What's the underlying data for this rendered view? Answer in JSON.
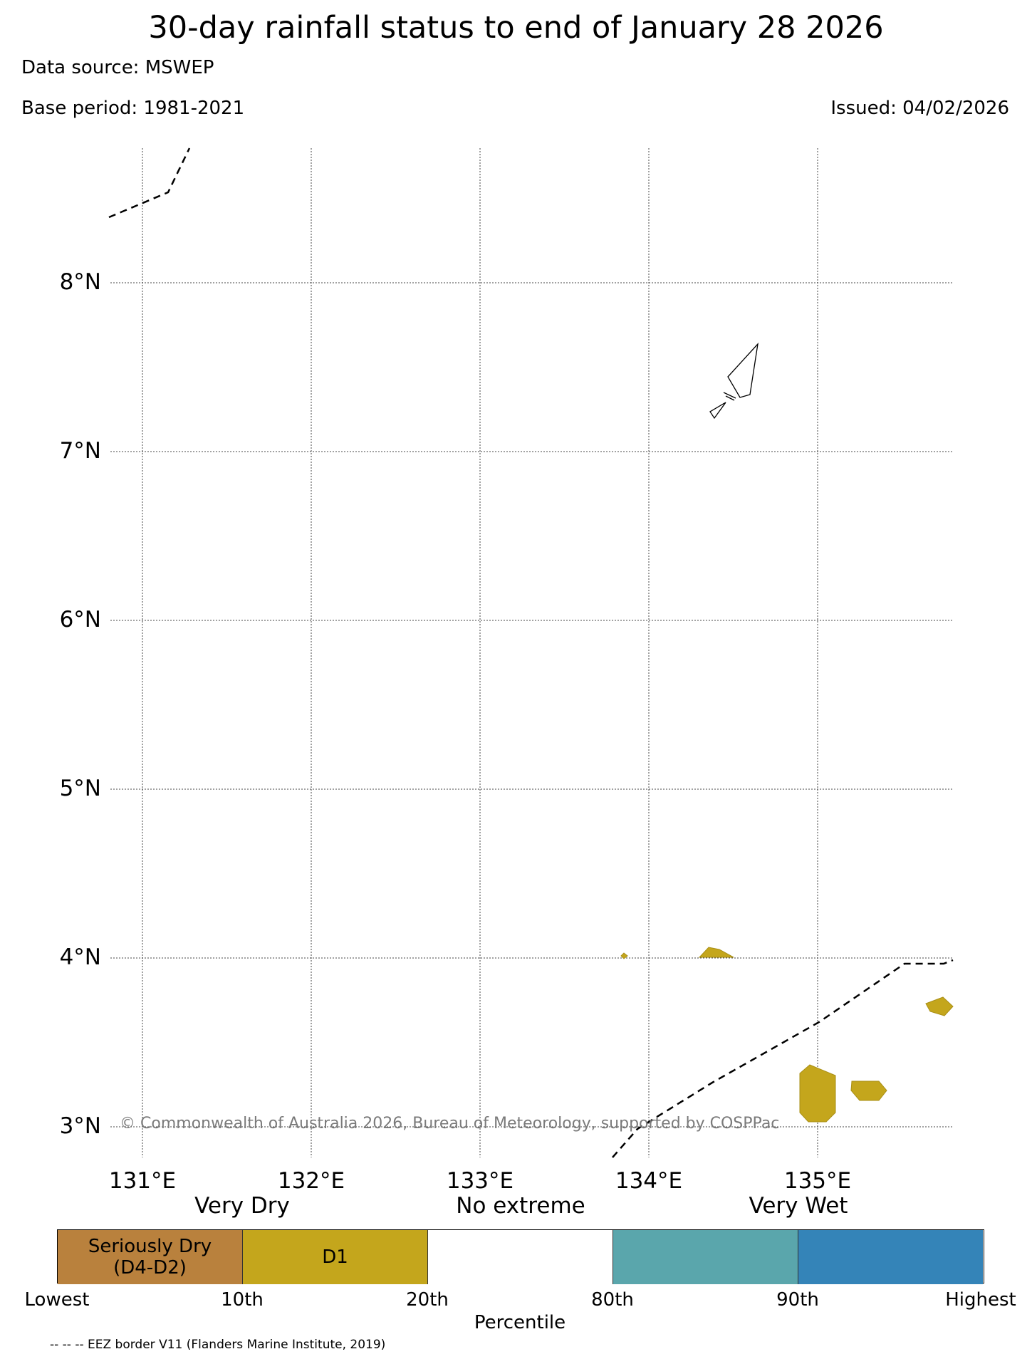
{
  "title": "30-day rainfall status to end of January 28 2026",
  "data_source": "Data source: MSWEP",
  "base_period": "Base period: 1981-2021",
  "issued": "Issued: 04/02/2026",
  "copyright": "© Commonwealth of Australia 2026, Bureau of Meteorology, supported by COSPPac",
  "map": {
    "lat_labels": [
      "8°N",
      "7°N",
      "6°N",
      "5°N",
      "4°N",
      "3°N"
    ],
    "lon_labels": [
      "131°E",
      "132°E",
      "133°E",
      "134°E",
      "135°E"
    ],
    "colors": {
      "d1": "#C4A61C",
      "seriously_dry": "#B9813D",
      "very_wet_80": "#5AA6AC",
      "very_wet_90": "#3484B8"
    }
  },
  "legend": {
    "category_labels": [
      "Very Dry",
      "No extreme",
      "Very Wet"
    ],
    "segments": [
      {
        "label_line1": "Seriously Dry",
        "label_line2": "(D4-D2)",
        "color": "#B9813D"
      },
      {
        "label_line1": "D1",
        "label_line2": "",
        "color": "#C4A61C"
      },
      {
        "label_line1": "",
        "label_line2": "",
        "color": "#FFFFFF"
      },
      {
        "label_line1": "",
        "label_line2": "",
        "color": "#5AA6AC"
      },
      {
        "label_line1": "",
        "label_line2": "",
        "color": "#3484B8"
      }
    ],
    "percentile_ticks": [
      "Lowest",
      "10th",
      "20th",
      "80th",
      "90th",
      "Highest"
    ],
    "axis_label": "Percentile"
  },
  "footnote": "-- -- -- EEZ border V11 (Flanders Marine Institute, 2019)"
}
